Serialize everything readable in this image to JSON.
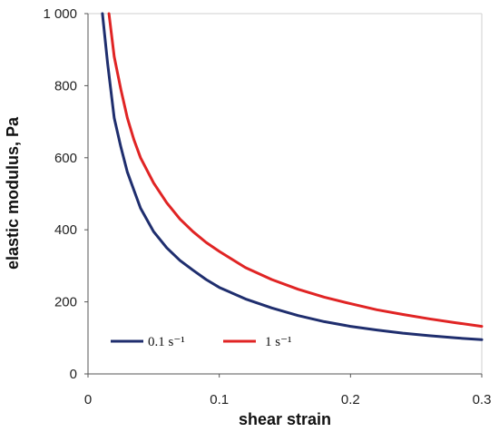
{
  "chart_data": {
    "type": "line",
    "title": "",
    "xlabel": "shear strain",
    "ylabel": "elastic modulus, Pa",
    "xlim": [
      0,
      0.3
    ],
    "ylim": [
      0,
      1000
    ],
    "xticks": [
      {
        "value": 0,
        "label": "0"
      },
      {
        "value": 0.1,
        "label": "0.1"
      },
      {
        "value": 0.2,
        "label": "0.2"
      },
      {
        "value": 0.3,
        "label": "0.3"
      }
    ],
    "yticks": [
      {
        "value": 0,
        "label": "0"
      },
      {
        "value": 200,
        "label": "200"
      },
      {
        "value": 400,
        "label": "400"
      },
      {
        "value": 600,
        "label": "600"
      },
      {
        "value": 800,
        "label": "800"
      },
      {
        "value": 1000,
        "label": "1 000"
      }
    ],
    "grid": false,
    "legend_position": "bottom-left",
    "series": [
      {
        "name": "0.1 s⁻¹",
        "color": "#1f2e6e",
        "x": [
          0.011,
          0.015,
          0.02,
          0.025,
          0.03,
          0.035,
          0.04,
          0.05,
          0.06,
          0.07,
          0.08,
          0.09,
          0.1,
          0.12,
          0.14,
          0.16,
          0.18,
          0.2,
          0.22,
          0.24,
          0.26,
          0.28,
          0.3
        ],
        "y": [
          1000,
          860,
          710,
          630,
          560,
          510,
          460,
          395,
          350,
          315,
          288,
          262,
          240,
          208,
          183,
          162,
          145,
          132,
          122,
          113,
          106,
          100,
          95
        ]
      },
      {
        "name": "1 s⁻¹",
        "color": "#e02424",
        "x": [
          0.016,
          0.02,
          0.025,
          0.03,
          0.035,
          0.04,
          0.05,
          0.06,
          0.07,
          0.08,
          0.09,
          0.1,
          0.12,
          0.14,
          0.16,
          0.18,
          0.2,
          0.22,
          0.24,
          0.26,
          0.28,
          0.3
        ],
        "y": [
          1000,
          880,
          790,
          710,
          650,
          600,
          530,
          475,
          430,
          395,
          365,
          340,
          295,
          262,
          235,
          213,
          195,
          178,
          165,
          153,
          142,
          132
        ]
      }
    ]
  }
}
